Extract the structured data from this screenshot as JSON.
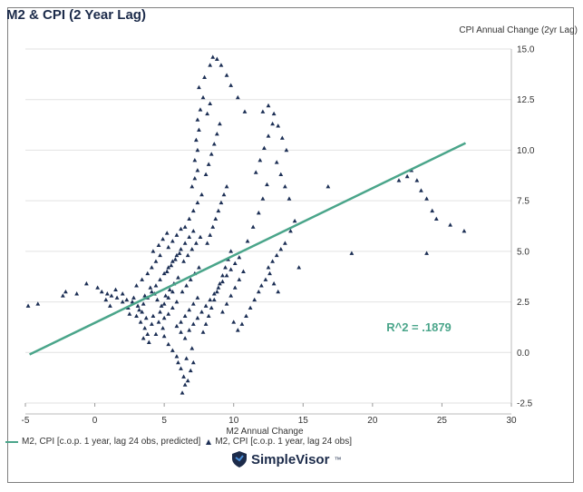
{
  "header": {
    "title": "M2 & CPI (2 Year Lag)"
  },
  "brand": {
    "name": "SimpleVisor",
    "mark": "™"
  },
  "colors": {
    "line": "#4aa58a",
    "points": "#1c2f55",
    "title": "#1c2b4a"
  },
  "chart_data": {
    "type": "scatter",
    "title": "M2 & CPI (2 Year Lag)",
    "xlabel": "M2 Annual Change",
    "ylabel": "CPI Annual Change (2yr Lag)",
    "xlim": [
      -5,
      30
    ],
    "ylim": [
      -2.5,
      15
    ],
    "x_ticks": [
      -5,
      0,
      5,
      10,
      15,
      20,
      25,
      30
    ],
    "y_ticks": [
      -2.5,
      0.0,
      2.5,
      5.0,
      7.5,
      10.0,
      12.5,
      15.0
    ],
    "x_tick_labels": [
      "-5",
      "0",
      "5",
      "10",
      "15",
      "20",
      "25",
      "30"
    ],
    "y_tick_labels": [
      "-2.5",
      "0.0",
      "2.5",
      "5.0",
      "7.5",
      "10.0",
      "12.5",
      "15.0"
    ],
    "grid": true,
    "annotation": "R^2 = .1879",
    "legend_position": "bottom-left",
    "series": [
      {
        "name": "M2, CPI [c.o.p. 1 year, lag 24 obs, predicted]",
        "kind": "line",
        "x": [
          -4.7,
          26.7
        ],
        "y": [
          -0.1,
          10.35
        ]
      },
      {
        "name": "M2, CPI [c.o.p. 1 year, lag 24 obs]",
        "kind": "scatter",
        "points": [
          [
            -4.8,
            2.3
          ],
          [
            -4.1,
            2.4
          ],
          [
            -2.3,
            2.8
          ],
          [
            -2.1,
            3.0
          ],
          [
            -1.3,
            2.9
          ],
          [
            -0.6,
            3.4
          ],
          [
            0.2,
            3.2
          ],
          [
            0.5,
            3.0
          ],
          [
            0.9,
            2.9
          ],
          [
            1.2,
            2.8
          ],
          [
            1.6,
            2.7
          ],
          [
            2.0,
            2.5
          ],
          [
            2.3,
            2.6
          ],
          [
            2.7,
            2.5
          ],
          [
            2.0,
            2.9
          ],
          [
            1.5,
            3.1
          ],
          [
            0.8,
            2.6
          ],
          [
            1.1,
            2.3
          ],
          [
            2.4,
            2.2
          ],
          [
            2.8,
            2.7
          ],
          [
            2.5,
            1.9
          ],
          [
            3.0,
            1.8
          ],
          [
            3.3,
            1.5
          ],
          [
            3.6,
            1.2
          ],
          [
            3.8,
            0.9
          ],
          [
            3.5,
            0.7
          ],
          [
            3.9,
            0.5
          ],
          [
            3.1,
            2.3
          ],
          [
            3.4,
            2.0
          ],
          [
            3.7,
            1.7
          ],
          [
            3.0,
            3.3
          ],
          [
            3.4,
            3.6
          ],
          [
            3.8,
            3.9
          ],
          [
            4.1,
            4.2
          ],
          [
            4.4,
            4.5
          ],
          [
            4.7,
            4.8
          ],
          [
            4.2,
            5.0
          ],
          [
            4.6,
            5.3
          ],
          [
            4.9,
            5.6
          ],
          [
            5.2,
            5.9
          ],
          [
            4.0,
            3.2
          ],
          [
            4.3,
            2.9
          ],
          [
            4.5,
            2.6
          ],
          [
            4.8,
            2.3
          ],
          [
            4.2,
            1.8
          ],
          [
            4.6,
            1.5
          ],
          [
            4.9,
            1.2
          ],
          [
            4.4,
            0.9
          ],
          [
            4.1,
            1.4
          ],
          [
            3.6,
            2.8
          ],
          [
            5.0,
            1.7
          ],
          [
            5.3,
            1.9
          ],
          [
            5.6,
            2.2
          ],
          [
            5.9,
            2.5
          ],
          [
            5.1,
            2.8
          ],
          [
            5.4,
            3.1
          ],
          [
            5.7,
            3.4
          ],
          [
            6.0,
            3.7
          ],
          [
            5.2,
            4.0
          ],
          [
            5.5,
            4.3
          ],
          [
            5.8,
            4.6
          ],
          [
            6.1,
            4.9
          ],
          [
            5.3,
            5.2
          ],
          [
            5.6,
            5.5
          ],
          [
            5.9,
            5.8
          ],
          [
            6.2,
            6.1
          ],
          [
            5.0,
            0.8
          ],
          [
            5.3,
            0.4
          ],
          [
            5.6,
            0.1
          ],
          [
            5.9,
            -0.2
          ],
          [
            6.0,
            -0.5
          ],
          [
            6.2,
            -0.8
          ],
          [
            6.4,
            -1.2
          ],
          [
            6.5,
            -1.6
          ],
          [
            6.3,
            -2.0
          ],
          [
            6.7,
            -1.4
          ],
          [
            6.9,
            -0.9
          ],
          [
            7.1,
            -0.5
          ],
          [
            6.6,
            -0.3
          ],
          [
            7.0,
            0.2
          ],
          [
            6.2,
            1.5
          ],
          [
            6.5,
            1.8
          ],
          [
            6.8,
            2.1
          ],
          [
            7.1,
            2.4
          ],
          [
            7.4,
            2.7
          ],
          [
            6.3,
            3.0
          ],
          [
            6.6,
            3.3
          ],
          [
            6.9,
            3.6
          ],
          [
            7.2,
            3.9
          ],
          [
            7.5,
            4.2
          ],
          [
            6.4,
            4.5
          ],
          [
            6.7,
            4.8
          ],
          [
            7.0,
            5.1
          ],
          [
            7.3,
            5.4
          ],
          [
            7.6,
            5.7
          ],
          [
            6.5,
            6.2
          ],
          [
            6.8,
            6.6
          ],
          [
            7.1,
            7.0
          ],
          [
            7.4,
            7.4
          ],
          [
            7.7,
            7.8
          ],
          [
            7.0,
            8.2
          ],
          [
            7.2,
            8.6
          ],
          [
            7.4,
            9.0
          ],
          [
            7.2,
            9.5
          ],
          [
            7.4,
            10.0
          ],
          [
            7.3,
            10.5
          ],
          [
            7.5,
            11.0
          ],
          [
            7.4,
            11.5
          ],
          [
            7.6,
            12.0
          ],
          [
            7.8,
            12.6
          ],
          [
            7.5,
            13.1
          ],
          [
            7.9,
            13.6
          ],
          [
            8.3,
            14.2
          ],
          [
            8.5,
            14.6
          ],
          [
            8.8,
            14.5
          ],
          [
            9.1,
            14.2
          ],
          [
            9.5,
            13.7
          ],
          [
            9.8,
            13.2
          ],
          [
            10.3,
            12.6
          ],
          [
            10.8,
            11.9
          ],
          [
            7.8,
            1.0
          ],
          [
            8.0,
            1.4
          ],
          [
            8.2,
            1.8
          ],
          [
            8.4,
            2.2
          ],
          [
            8.6,
            2.6
          ],
          [
            8.8,
            3.0
          ],
          [
            9.0,
            3.4
          ],
          [
            9.2,
            3.8
          ],
          [
            9.4,
            4.2
          ],
          [
            9.6,
            4.6
          ],
          [
            9.8,
            5.0
          ],
          [
            8.1,
            5.4
          ],
          [
            8.3,
            5.8
          ],
          [
            8.5,
            6.2
          ],
          [
            8.7,
            6.6
          ],
          [
            8.9,
            7.0
          ],
          [
            9.1,
            7.4
          ],
          [
            9.3,
            7.8
          ],
          [
            9.5,
            8.2
          ],
          [
            8.0,
            8.8
          ],
          [
            8.2,
            9.3
          ],
          [
            8.4,
            9.8
          ],
          [
            8.6,
            10.3
          ],
          [
            8.8,
            10.8
          ],
          [
            9.0,
            11.3
          ],
          [
            8.1,
            11.8
          ],
          [
            8.3,
            12.3
          ],
          [
            9.2,
            2.0
          ],
          [
            9.5,
            2.4
          ],
          [
            9.8,
            2.8
          ],
          [
            10.1,
            3.2
          ],
          [
            10.4,
            3.6
          ],
          [
            10.7,
            4.0
          ],
          [
            10.0,
            1.5
          ],
          [
            10.3,
            1.1
          ],
          [
            10.6,
            1.4
          ],
          [
            10.9,
            1.8
          ],
          [
            11.2,
            2.2
          ],
          [
            11.5,
            2.6
          ],
          [
            11.8,
            3.0
          ],
          [
            11.0,
            5.5
          ],
          [
            11.4,
            6.2
          ],
          [
            11.8,
            6.9
          ],
          [
            12.1,
            7.6
          ],
          [
            12.4,
            8.3
          ],
          [
            11.6,
            8.9
          ],
          [
            11.9,
            9.5
          ],
          [
            12.2,
            10.1
          ],
          [
            12.5,
            10.7
          ],
          [
            12.8,
            11.3
          ],
          [
            12.1,
            11.9
          ],
          [
            12.5,
            12.2
          ],
          [
            12.9,
            11.8
          ],
          [
            13.2,
            11.2
          ],
          [
            13.5,
            10.6
          ],
          [
            13.8,
            10.0
          ],
          [
            13.1,
            9.4
          ],
          [
            13.4,
            8.8
          ],
          [
            13.7,
            8.2
          ],
          [
            14.0,
            7.6
          ],
          [
            12.0,
            3.3
          ],
          [
            12.3,
            3.6
          ],
          [
            12.6,
            3.9
          ],
          [
            12.9,
            3.4
          ],
          [
            13.2,
            3.0
          ],
          [
            12.5,
            4.2
          ],
          [
            12.8,
            4.5
          ],
          [
            13.1,
            4.8
          ],
          [
            13.4,
            5.1
          ],
          [
            13.7,
            5.4
          ],
          [
            14.1,
            6.0
          ],
          [
            14.4,
            6.5
          ],
          [
            14.7,
            4.2
          ],
          [
            16.8,
            8.2
          ],
          [
            18.5,
            4.9
          ],
          [
            21.9,
            8.5
          ],
          [
            22.8,
            9.0
          ],
          [
            23.2,
            8.5
          ],
          [
            23.5,
            8.0
          ],
          [
            23.9,
            7.6
          ],
          [
            24.3,
            7.0
          ],
          [
            24.6,
            6.6
          ],
          [
            25.6,
            6.3
          ],
          [
            26.6,
            6.0
          ],
          [
            23.9,
            4.9
          ],
          [
            22.5,
            8.7
          ],
          [
            4.7,
            2.0
          ],
          [
            5.0,
            2.4
          ],
          [
            5.3,
            2.7
          ],
          [
            5.6,
            3.0
          ],
          [
            5.9,
            1.3
          ],
          [
            6.2,
            1.0
          ],
          [
            6.5,
            0.7
          ],
          [
            6.8,
            1.1
          ],
          [
            7.1,
            1.4
          ],
          [
            7.4,
            1.7
          ],
          [
            7.7,
            2.0
          ],
          [
            8.0,
            2.3
          ],
          [
            8.3,
            2.6
          ],
          [
            8.6,
            2.9
          ],
          [
            8.9,
            3.2
          ],
          [
            9.2,
            3.5
          ],
          [
            9.5,
            3.8
          ],
          [
            9.8,
            4.1
          ],
          [
            10.1,
            4.4
          ],
          [
            10.4,
            4.7
          ],
          [
            3.2,
            2.1
          ],
          [
            3.5,
            2.4
          ],
          [
            3.8,
            2.7
          ],
          [
            4.1,
            3.0
          ],
          [
            4.4,
            3.3
          ],
          [
            4.7,
            3.6
          ],
          [
            5.0,
            3.9
          ],
          [
            5.3,
            4.2
          ],
          [
            5.6,
            4.5
          ],
          [
            5.9,
            4.8
          ],
          [
            6.2,
            5.1
          ],
          [
            6.5,
            5.4
          ],
          [
            6.8,
            5.7
          ],
          [
            7.1,
            6.0
          ]
        ]
      }
    ]
  }
}
